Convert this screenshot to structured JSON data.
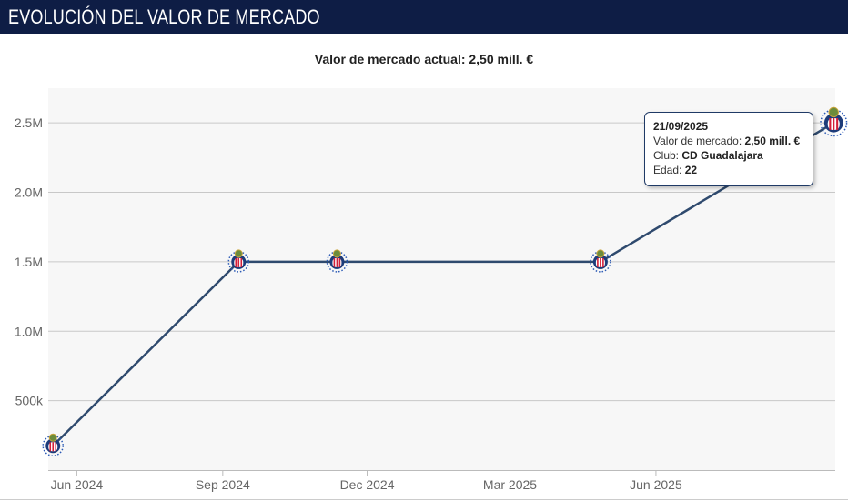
{
  "header": {
    "title": "EVOLUCIÓN DEL VALOR DE MERCADO"
  },
  "chart_data": {
    "type": "line",
    "title": "Valor de mercado actual: 2,50 mill. €",
    "xlabel": "",
    "ylabel": "",
    "x": [
      "2024-05-17",
      "2024-09-11",
      "2024-11-12",
      "2025-04-27",
      "2025-09-21"
    ],
    "values": [
      175000,
      1500000,
      1500000,
      1500000,
      2500000
    ],
    "club": "CD Guadalajara",
    "ylim": [
      0,
      2750000
    ],
    "xlim": [
      "2024-05-14",
      "2025-09-22"
    ],
    "y_ticks": [
      {
        "value": 500000,
        "label": "500k"
      },
      {
        "value": 1000000,
        "label": "1.0M"
      },
      {
        "value": 1500000,
        "label": "1.5M"
      },
      {
        "value": 2000000,
        "label": "2.0M"
      },
      {
        "value": 2500000,
        "label": "2.5M"
      }
    ],
    "x_ticks": [
      {
        "date": "2024-06-01",
        "label": "Jun 2024"
      },
      {
        "date": "2024-09-01",
        "label": "Sep 2024"
      },
      {
        "date": "2024-12-01",
        "label": "Dec 2024"
      },
      {
        "date": "2025-03-01",
        "label": "Mar 2025"
      },
      {
        "date": "2025-06-01",
        "label": "Jun 2025"
      }
    ],
    "grid": true,
    "line_color": "#2f4a6e",
    "tooltip": {
      "date": "21/09/2025",
      "value_label": "Valor de mercado:",
      "value": "2,50 mill. €",
      "club_label": "Club:",
      "club": "CD Guadalajara",
      "age_label": "Edad:",
      "age": "22"
    }
  }
}
